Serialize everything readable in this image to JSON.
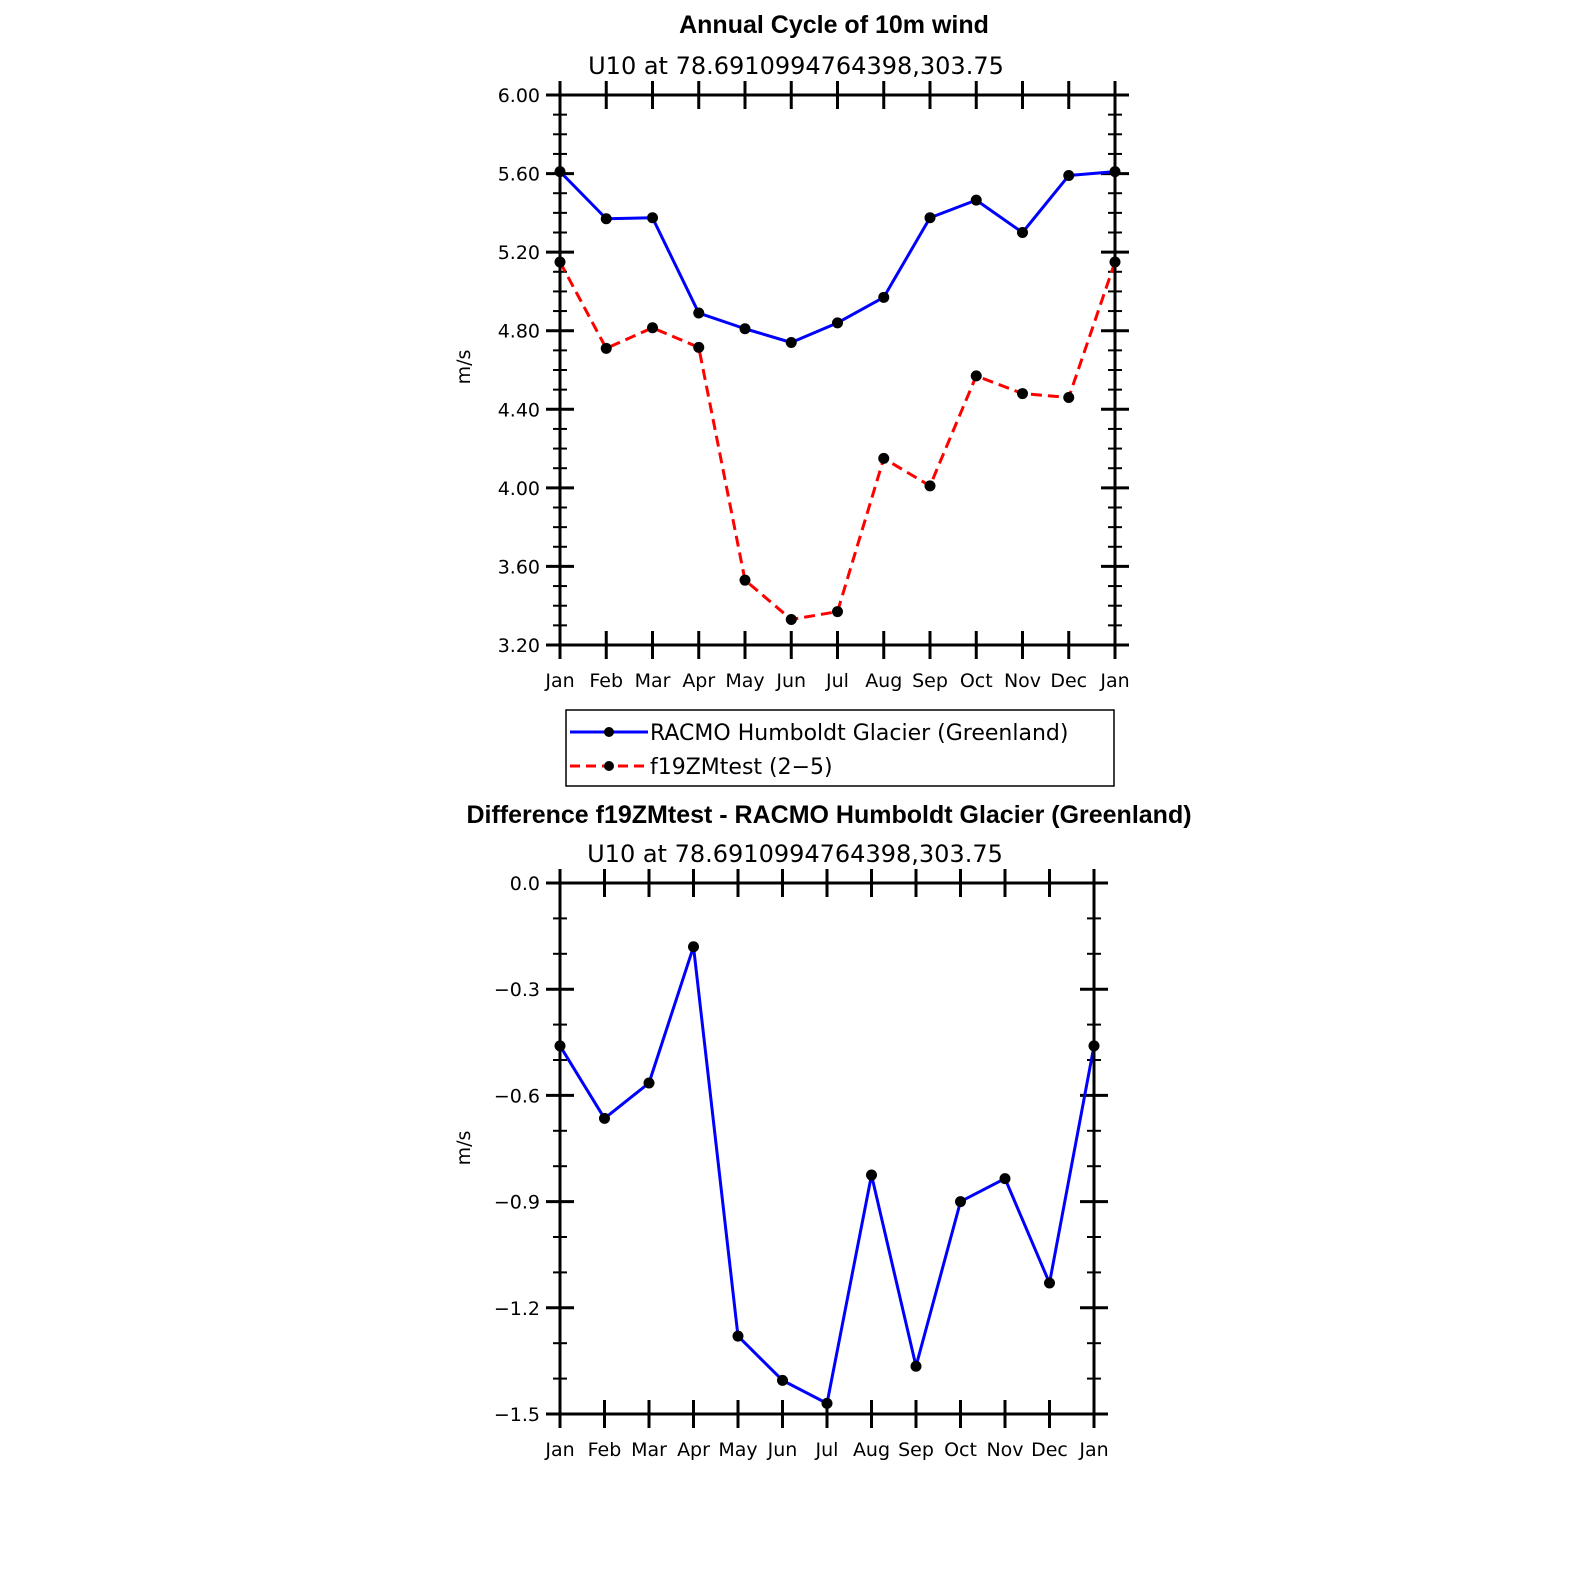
{
  "chart_data": [
    {
      "type": "line",
      "title": "Annual Cycle of 10m wind",
      "subtitle": "U10  at  78.6910994764398,303.75",
      "ylabel": "m/s",
      "xlabel": "",
      "categories": [
        "Jan",
        "Feb",
        "Mar",
        "Apr",
        "May",
        "Jun",
        "Jul",
        "Aug",
        "Sep",
        "Oct",
        "Nov",
        "Dec",
        "Jan"
      ],
      "ylim": [
        3.2,
        6.0
      ],
      "yticks": [
        "3.20",
        "3.60",
        "4.00",
        "4.40",
        "4.80",
        "5.20",
        "5.60",
        "6.00"
      ],
      "legend": "below",
      "series": [
        {
          "name": "RACMO Humboldt Glacier (Greenland)",
          "color": "#0000ff",
          "dash": "solid",
          "values": [
            5.61,
            5.37,
            5.375,
            4.89,
            4.81,
            4.74,
            4.84,
            4.97,
            5.375,
            5.465,
            5.3,
            5.59,
            5.61
          ]
        },
        {
          "name": "f19ZMtest (2−5)",
          "color": "#ff0000",
          "dash": "dashed",
          "values": [
            5.15,
            4.71,
            4.815,
            4.715,
            3.53,
            3.33,
            3.37,
            4.15,
            4.01,
            4.57,
            4.48,
            4.46,
            5.15
          ]
        }
      ]
    },
    {
      "type": "line",
      "title": "Difference f19ZMtest - RACMO Humboldt Glacier (Greenland)",
      "subtitle": "U10  at  78.6910994764398,303.75",
      "ylabel": "m/s",
      "xlabel": "",
      "categories": [
        "Jan",
        "Feb",
        "Mar",
        "Apr",
        "May",
        "Jun",
        "Jul",
        "Aug",
        "Sep",
        "Oct",
        "Nov",
        "Dec",
        "Jan"
      ],
      "ylim": [
        -1.5,
        0.0
      ],
      "yticks": [
        "−1.5",
        "−1.2",
        "−0.9",
        "−0.6",
        "−0.3",
        "0.0"
      ],
      "series": [
        {
          "color": "#0000ff",
          "dash": "solid",
          "values": [
            -0.46,
            -0.665,
            -0.565,
            -0.18,
            -1.28,
            -1.405,
            -1.47,
            -0.825,
            -1.365,
            -0.9,
            -0.835,
            -1.13,
            -0.46
          ]
        }
      ]
    }
  ]
}
